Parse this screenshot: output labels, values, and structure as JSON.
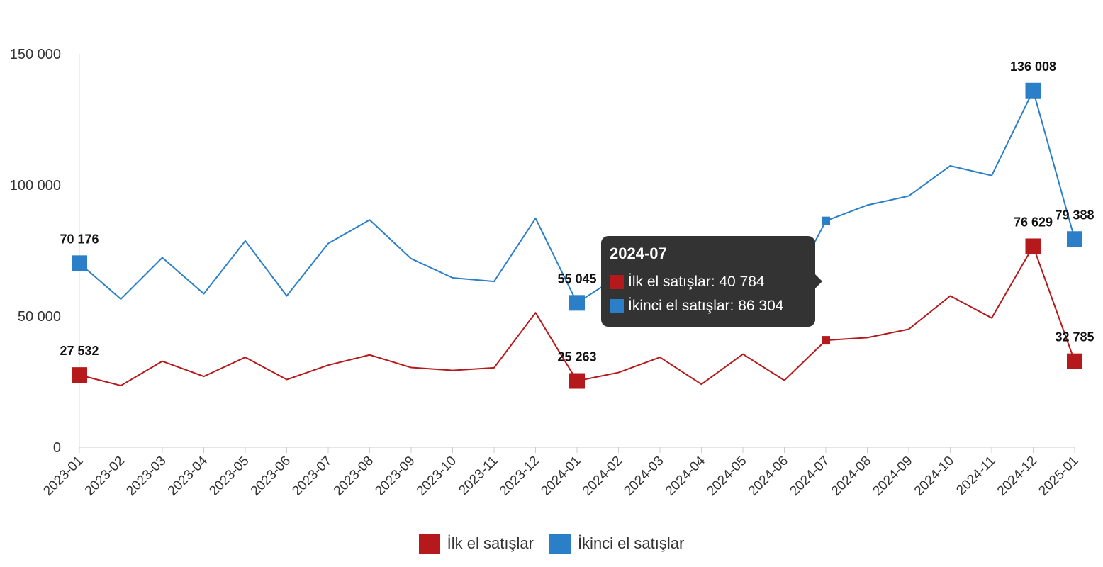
{
  "chart_data": {
    "type": "line",
    "categories": [
      "2023-01",
      "2023-02",
      "2023-03",
      "2023-04",
      "2023-05",
      "2023-06",
      "2023-07",
      "2023-08",
      "2023-09",
      "2023-10",
      "2023-11",
      "2023-12",
      "2024-01",
      "2024-02",
      "2024-03",
      "2024-04",
      "2024-05",
      "2024-06",
      "2024-07",
      "2024-08",
      "2024-09",
      "2024-10",
      "2024-11",
      "2024-12",
      "2025-01"
    ],
    "series": [
      {
        "name": "İlk el satışlar",
        "color": "#b5191b",
        "values": [
          27532,
          23500,
          32800,
          27000,
          34300,
          25800,
          31300,
          35200,
          30400,
          29300,
          30300,
          51300,
          25263,
          28500,
          34300,
          24000,
          35500,
          25500,
          40784,
          41800,
          45000,
          57700,
          49300,
          76629,
          32785
        ]
      },
      {
        "name": "İkinci el satışlar",
        "color": "#2a7fc8",
        "values": [
          70176,
          56500,
          72300,
          58500,
          78700,
          57700,
          77700,
          86700,
          71900,
          64600,
          63200,
          87300,
          55045,
          65200,
          71000,
          56800,
          75200,
          56000,
          86304,
          92300,
          95800,
          107300,
          103600,
          136008,
          79388
        ]
      }
    ],
    "labeled_points": [
      {
        "series": 0,
        "index": 0,
        "label": "27 532"
      },
      {
        "series": 0,
        "index": 12,
        "label": "25 263"
      },
      {
        "series": 0,
        "index": 23,
        "label": "76 629"
      },
      {
        "series": 0,
        "index": 24,
        "label": "32 785"
      },
      {
        "series": 1,
        "index": 0,
        "label": "70 176"
      },
      {
        "series": 1,
        "index": 12,
        "label": "55 045"
      },
      {
        "series": 1,
        "index": 23,
        "label": "136 008"
      },
      {
        "series": 1,
        "index": 24,
        "label": "79 388"
      }
    ],
    "yticks": [
      {
        "value": 0,
        "label": "0"
      },
      {
        "value": 50000,
        "label": "50 000"
      },
      {
        "value": 100000,
        "label": "100 000"
      },
      {
        "value": 150000,
        "label": "150 000"
      }
    ],
    "ylim": [
      0,
      150000
    ],
    "grid": false,
    "legend_position": "bottom"
  },
  "tooltip": {
    "title": "2024-07",
    "index": 18,
    "rows": [
      {
        "label": "İlk el satışlar: 40 784",
        "color": "#b5191b"
      },
      {
        "label": "İkinci el satışlar: 86 304",
        "color": "#2a7fc8"
      }
    ]
  },
  "legend": {
    "items": [
      {
        "label": "İlk el satışlar",
        "color": "#b5191b"
      },
      {
        "label": "İkinci el satışlar",
        "color": "#2a7fc8"
      }
    ]
  }
}
